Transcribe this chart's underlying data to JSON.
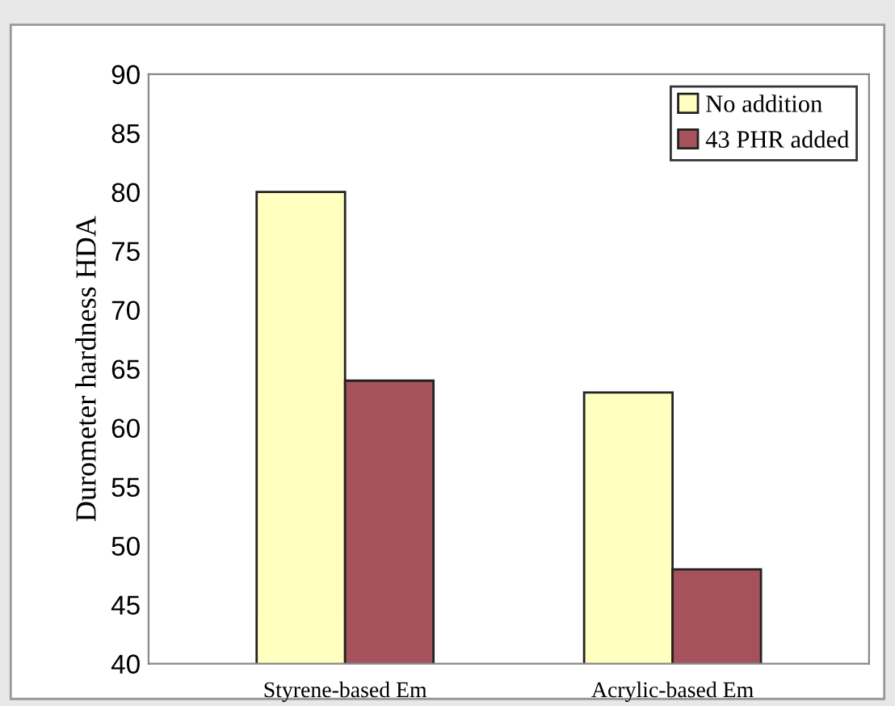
{
  "chart_data": {
    "type": "bar",
    "ylabel": "Durometer hardness HDA",
    "categories": [
      "Styrene-based Em",
      "Acrylic-based Em"
    ],
    "series": [
      {
        "name": "No addition",
        "color": "#ffffc0",
        "values": [
          80,
          63
        ]
      },
      {
        "name": "43 PHR added",
        "color": "#a5525c",
        "values": [
          64,
          48
        ]
      }
    ],
    "ylim": [
      40,
      90
    ],
    "yticks": [
      40,
      45,
      50,
      55,
      60,
      65,
      70,
      75,
      80,
      85,
      90
    ],
    "grid": false,
    "legend": "top right"
  }
}
